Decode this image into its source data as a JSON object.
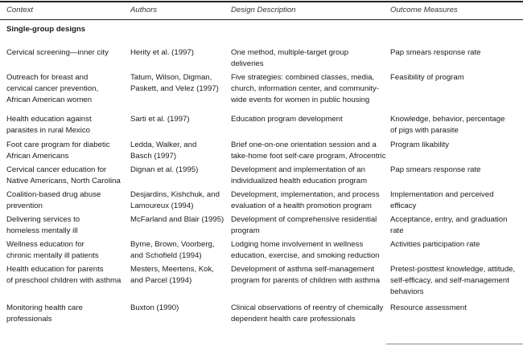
{
  "headers": [
    "Context",
    "Authors",
    "Design Description",
    "Outcome Measures"
  ],
  "section": "Single-group designs",
  "rows": [
    {
      "context": "Cervical screening—inner city",
      "authors": "Herity et al. (1997)",
      "design": "One method, multiple-target group\ndeliveries",
      "outcome": "Pap smears response rate"
    },
    {
      "context": "Outreach for breast and\ncervical cancer prevention,\nAfrican American women",
      "authors": "Tatum, Wilson, Digman,\nPaskett, and Velez (1997)",
      "design": "Five strategies: combined classes, media,\nchurch, information center, and community-\nwide events for women in public housing",
      "outcome": "Feasibility of program"
    },
    {
      "context": "Health education against\nparasites in rural Mexico",
      "authors": "Sarti et al. (1997)",
      "design": "Education program development",
      "outcome": "Knowledge, behavior, percentage\nof pigs with parasite"
    },
    {
      "context": "Foot care program for diabetic\nAfrican Americans",
      "authors": "Ledda, Walker, and\nBasch (1997)",
      "design": "Brief one-on-one orientation session and a\ntake-home foot self-care program, Afrocentric",
      "outcome": "Program likability"
    },
    {
      "context": "Cervical cancer education for\nNative Americans, North Carolina",
      "authors": "Dignan et al. (1995)",
      "design": "Development and implementation of an\nindividualized health education program",
      "outcome": "Pap smears response rate"
    },
    {
      "context": "Coalition-based drug abuse\nprevention",
      "authors": "Desjardins, Kishchuk, and\nLamoureux (1994)",
      "design": "Development, implementation, and process\nevaluation of a health promotion program",
      "outcome": "Implementation and perceived\nefficacy"
    },
    {
      "context": "Delivering services to\nhomeless mentally ill",
      "authors": "McFarland and Blair (1995)",
      "design": "Development of comprehensive residential\nprogram",
      "outcome": "Acceptance, entry, and graduation\nrate"
    },
    {
      "context": "Wellness education for\nchronic mentally ill patients",
      "authors": "Byrne, Brown, Voorberg,\nand Schofield (1994)",
      "design": "Lodging home involvement in wellness\neducation, exercise, and smoking reduction",
      "outcome": "Activities participation rate"
    },
    {
      "context": "Health education for parents\nof preschool children with asthma",
      "authors": "Mesters, Meertens, Kok,\nand Parcel (1994)",
      "design": "Development of asthma self-management\nprogram for parents of children with asthma",
      "outcome": "Pretest-posttest knowledge, attitude,\nself-efficacy, and self-management\nbehaviors"
    },
    {
      "context": "Monitoring health care\nprofessionals",
      "authors": "Buxton (1990)",
      "design": "Clinical observations of reentry of chemically\ndependent health care professionals",
      "outcome": "Resource assessment"
    }
  ]
}
